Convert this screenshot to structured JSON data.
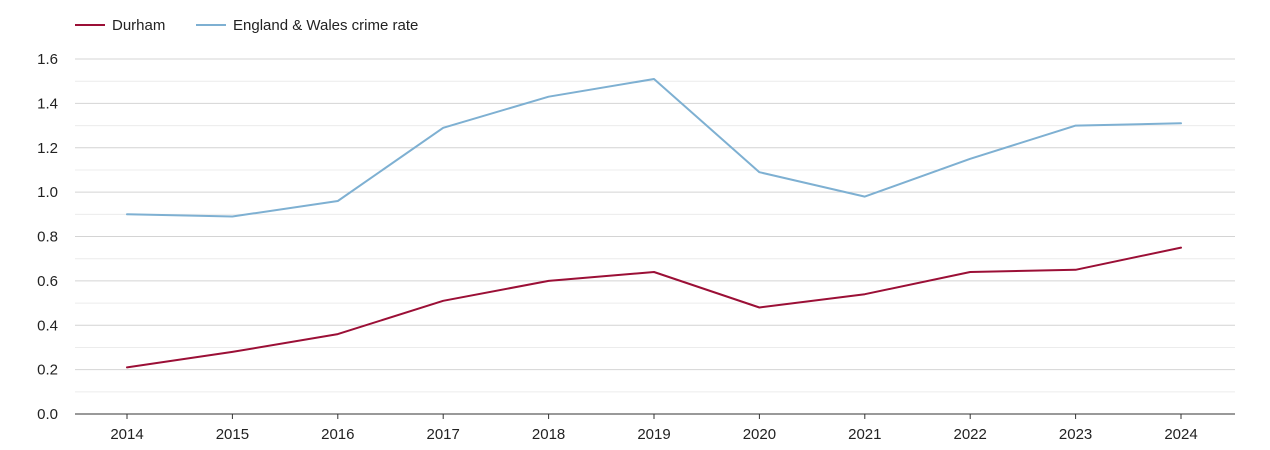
{
  "chart_data": {
    "type": "line",
    "title": "",
    "xlabel": "",
    "ylabel": "",
    "x": [
      "2014",
      "2015",
      "2016",
      "2017",
      "2018",
      "2019",
      "2020",
      "2021",
      "2022",
      "2023",
      "2024"
    ],
    "ylim": [
      0,
      1.6
    ],
    "yticks": [
      "0.0",
      "0.2",
      "0.4",
      "0.6",
      "0.8",
      "1.0",
      "1.2",
      "1.4",
      "1.6"
    ],
    "grid": true,
    "legend_position": "top-left",
    "series": [
      {
        "name": "Durham",
        "color": "#9b0f36",
        "values": [
          0.21,
          0.28,
          0.36,
          0.51,
          0.6,
          0.64,
          0.48,
          0.54,
          0.64,
          0.65,
          0.75
        ]
      },
      {
        "name": "England & Wales crime rate",
        "color": "#7eb0d2",
        "values": [
          0.9,
          0.89,
          0.96,
          1.29,
          1.43,
          1.51,
          1.09,
          0.98,
          1.15,
          1.3,
          1.31
        ]
      }
    ]
  }
}
